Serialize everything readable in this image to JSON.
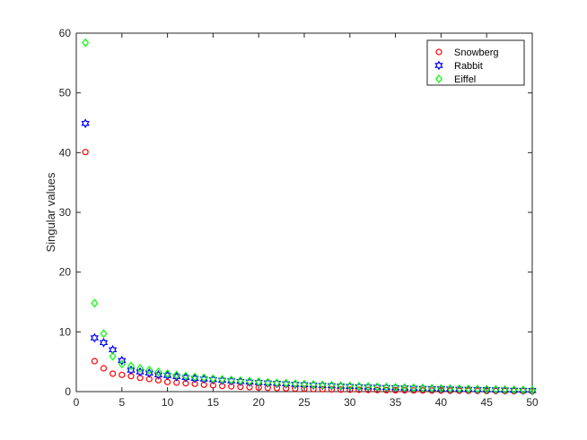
{
  "chart_data": {
    "type": "scatter",
    "title": "",
    "xlabel": "",
    "ylabel": "Singular values",
    "xlim": [
      0,
      50
    ],
    "ylim": [
      0,
      60
    ],
    "xticks": [
      0,
      5,
      10,
      15,
      20,
      25,
      30,
      35,
      40,
      45,
      50
    ],
    "yticks": [
      0,
      10,
      20,
      30,
      40,
      50,
      60
    ],
    "grid": false,
    "legend_position": "top-right",
    "x": [
      1,
      2,
      3,
      4,
      5,
      6,
      7,
      8,
      9,
      10,
      11,
      12,
      13,
      14,
      15,
      16,
      17,
      18,
      19,
      20,
      21,
      22,
      23,
      24,
      25,
      26,
      27,
      28,
      29,
      30,
      31,
      32,
      33,
      34,
      35,
      36,
      37,
      38,
      39,
      40,
      41,
      42,
      43,
      44,
      45,
      46,
      47,
      48,
      49,
      50
    ],
    "series": [
      {
        "name": "Snowberg",
        "marker": "circle",
        "color": "#ff0000",
        "values": [
          40.1,
          5.1,
          3.9,
          3.0,
          2.8,
          2.6,
          2.3,
          2.1,
          1.9,
          1.6,
          1.5,
          1.4,
          1.3,
          1.15,
          1.05,
          0.95,
          0.88,
          0.8,
          0.74,
          0.68,
          0.63,
          0.58,
          0.54,
          0.5,
          0.46,
          0.43,
          0.4,
          0.37,
          0.34,
          0.32,
          0.3,
          0.28,
          0.26,
          0.24,
          0.22,
          0.21,
          0.2,
          0.19,
          0.18,
          0.17,
          0.16,
          0.15,
          0.14,
          0.13,
          0.12,
          0.11,
          0.1,
          0.09,
          0.08,
          0.07
        ]
      },
      {
        "name": "Rabbit",
        "marker": "hexagram",
        "color": "#0000ff",
        "values": [
          44.9,
          9.0,
          8.2,
          7.0,
          5.2,
          3.6,
          3.3,
          3.1,
          2.8,
          2.7,
          2.5,
          2.35,
          2.2,
          2.1,
          2.0,
          1.9,
          1.8,
          1.7,
          1.6,
          1.52,
          1.45,
          1.38,
          1.3,
          1.22,
          1.15,
          1.1,
          1.04,
          0.98,
          0.92,
          0.87,
          0.82,
          0.77,
          0.73,
          0.69,
          0.65,
          0.61,
          0.57,
          0.54,
          0.5,
          0.47,
          0.44,
          0.41,
          0.38,
          0.35,
          0.32,
          0.3,
          0.27,
          0.24,
          0.22,
          0.2
        ]
      },
      {
        "name": "Eiffel",
        "marker": "diamond",
        "color": "#00ff00",
        "values": [
          58.4,
          14.8,
          9.7,
          5.9,
          4.6,
          4.3,
          3.9,
          3.6,
          3.3,
          3.0,
          2.8,
          2.6,
          2.45,
          2.3,
          2.15,
          2.05,
          1.95,
          1.85,
          1.75,
          1.65,
          1.55,
          1.47,
          1.4,
          1.32,
          1.25,
          1.18,
          1.12,
          1.06,
          1.0,
          0.95,
          0.9,
          0.85,
          0.8,
          0.76,
          0.72,
          0.68,
          0.64,
          0.6,
          0.57,
          0.54,
          0.51,
          0.48,
          0.45,
          0.42,
          0.39,
          0.36,
          0.33,
          0.3,
          0.27,
          0.24
        ]
      }
    ]
  }
}
